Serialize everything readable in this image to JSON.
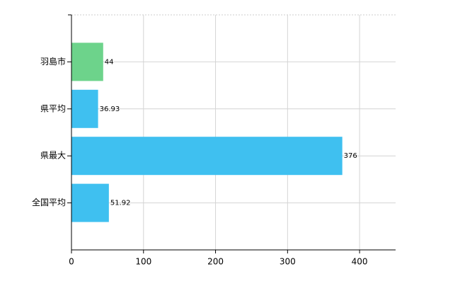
{
  "chart_data": {
    "type": "barh",
    "categories": [
      "羽島市",
      "県平均",
      "県最大",
      "全国平均"
    ],
    "values": [
      44,
      36.93,
      376,
      51.92
    ],
    "colors": [
      "#6dd38b",
      "#3fc0f0",
      "#3fc0f0",
      "#3fc0f0"
    ],
    "xlim": [
      0,
      450
    ],
    "xticks": [
      0,
      100,
      200,
      300,
      400
    ],
    "grid": true
  }
}
